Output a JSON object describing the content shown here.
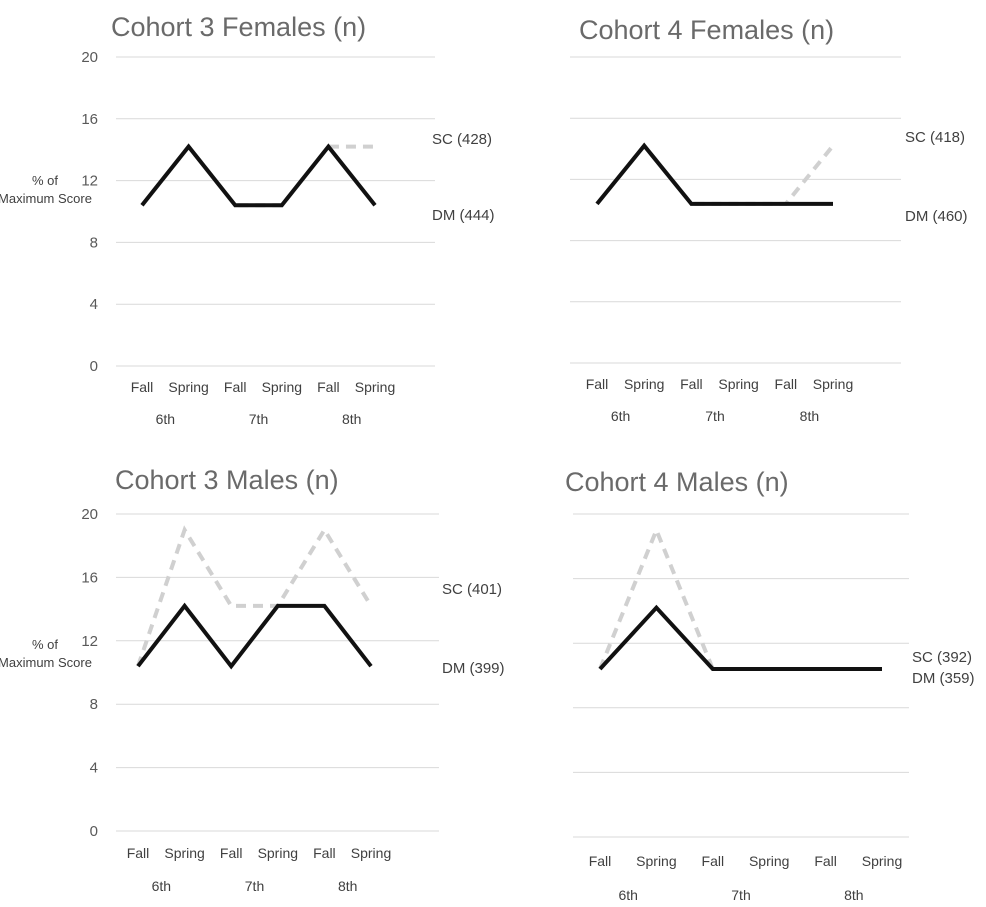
{
  "colors": {
    "sc": "#d0d0d0",
    "dm": "#111111",
    "grid": "#d9d9d9",
    "title": "#6a6a6a",
    "text": "#404040"
  },
  "chart_data": [
    {
      "type": "line",
      "title": "Cohort 3 Females (n)",
      "ylabel": "% of Maximum Score",
      "ylim": [
        0,
        20
      ],
      "yticks": [
        0,
        4,
        8,
        12,
        16,
        20
      ],
      "show_ytick_labels": true,
      "categories": [
        "Fall",
        "Spring",
        "Fall",
        "Spring",
        "Fall",
        "Spring"
      ],
      "groups": [
        "6th",
        "7th",
        "8th"
      ],
      "grid": true,
      "series": [
        {
          "name": "SC (428)",
          "style": "dashed",
          "values": [
            10.4,
            14.2,
            10.4,
            10.4,
            14.2,
            14.2
          ]
        },
        {
          "name": "DM (444)",
          "style": "solid",
          "values": [
            10.4,
            14.2,
            10.4,
            10.4,
            14.2,
            10.4
          ]
        }
      ]
    },
    {
      "type": "line",
      "title": "Cohort 4 Females (n)",
      "ylabel": "",
      "ylim": [
        0,
        20
      ],
      "yticks": [
        0,
        4,
        8,
        12,
        16,
        20
      ],
      "show_ytick_labels": false,
      "categories": [
        "Fall",
        "Spring",
        "Fall",
        "Spring",
        "Fall",
        "Spring"
      ],
      "groups": [
        "6th",
        "7th",
        "8th"
      ],
      "grid": true,
      "series": [
        {
          "name": "SC (418)",
          "style": "dashed",
          "values": [
            10.4,
            14.2,
            10.4,
            10.4,
            10.4,
            14.2
          ]
        },
        {
          "name": "DM (460)",
          "style": "solid",
          "values": [
            10.4,
            14.2,
            10.4,
            10.4,
            10.4,
            10.4
          ]
        }
      ]
    },
    {
      "type": "line",
      "title": "Cohort 3 Males (n)",
      "ylabel": "% of Maximum Score",
      "ylim": [
        0,
        20
      ],
      "yticks": [
        0,
        4,
        8,
        12,
        16,
        20
      ],
      "show_ytick_labels": true,
      "categories": [
        "Fall",
        "Spring",
        "Fall",
        "Spring",
        "Fall",
        "Spring"
      ],
      "groups": [
        "6th",
        "7th",
        "8th"
      ],
      "grid": true,
      "series": [
        {
          "name": "SC (401)",
          "style": "dashed",
          "values": [
            10.4,
            19.0,
            14.2,
            14.2,
            19.0,
            14.2
          ]
        },
        {
          "name": "DM (399)",
          "style": "solid",
          "values": [
            10.4,
            14.2,
            10.4,
            14.2,
            14.2,
            10.4
          ]
        }
      ]
    },
    {
      "type": "line",
      "title": "Cohort 4 Males (n)",
      "ylabel": "",
      "ylim": [
        0,
        20
      ],
      "yticks": [
        0,
        4,
        8,
        12,
        16,
        20
      ],
      "show_ytick_labels": false,
      "categories": [
        "Fall",
        "Spring",
        "Fall",
        "Spring",
        "Fall",
        "Spring"
      ],
      "groups": [
        "6th",
        "7th",
        "8th"
      ],
      "grid": true,
      "series": [
        {
          "name": "SC (392)",
          "style": "dashed",
          "values": [
            10.4,
            19.0,
            10.4,
            10.4,
            10.4,
            10.4
          ]
        },
        {
          "name": "DM (359)",
          "style": "solid",
          "values": [
            10.4,
            14.2,
            10.4,
            10.4,
            10.4,
            10.4
          ]
        }
      ]
    }
  ]
}
